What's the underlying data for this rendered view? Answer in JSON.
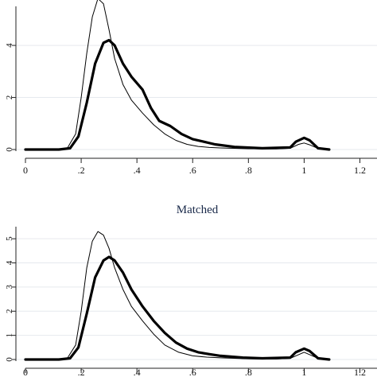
{
  "chart_data": [
    {
      "type": "line",
      "title": "",
      "xlim": [
        0,
        1.25
      ],
      "ylim": [
        0,
        5.5
      ],
      "xticks": [
        0,
        0.2,
        0.4,
        0.6,
        0.8,
        1,
        1.2
      ],
      "xtick_labels": [
        "0",
        ".2",
        ".4",
        ".6",
        ".8",
        "1",
        "1.2"
      ],
      "yticks": [
        0,
        2,
        4
      ],
      "ytick_labels": [
        "0",
        "2",
        "4"
      ],
      "grid": true,
      "series": [
        {
          "style": "thin",
          "x": [
            0.0,
            0.1,
            0.15,
            0.18,
            0.2,
            0.22,
            0.24,
            0.26,
            0.28,
            0.3,
            0.32,
            0.35,
            0.38,
            0.42,
            0.46,
            0.5,
            0.54,
            0.58,
            0.62,
            0.66,
            0.7,
            0.8,
            0.9,
            0.95,
            0.98,
            1.0,
            1.02,
            1.05,
            1.09
          ],
          "y": [
            0.0,
            0.0,
            0.05,
            0.6,
            2.0,
            3.7,
            5.1,
            5.8,
            5.6,
            4.6,
            3.5,
            2.5,
            1.9,
            1.4,
            0.95,
            0.6,
            0.35,
            0.2,
            0.12,
            0.08,
            0.06,
            0.03,
            0.02,
            0.05,
            0.2,
            0.25,
            0.18,
            0.04,
            0.0
          ]
        },
        {
          "style": "thick",
          "x": [
            0.0,
            0.12,
            0.16,
            0.19,
            0.22,
            0.25,
            0.28,
            0.3,
            0.32,
            0.35,
            0.38,
            0.42,
            0.45,
            0.48,
            0.52,
            0.56,
            0.6,
            0.64,
            0.68,
            0.75,
            0.85,
            0.95,
            0.97,
            1.0,
            1.02,
            1.05,
            1.09
          ],
          "y": [
            0.0,
            0.0,
            0.05,
            0.5,
            1.8,
            3.3,
            4.1,
            4.2,
            4.0,
            3.3,
            2.8,
            2.3,
            1.6,
            1.1,
            0.9,
            0.6,
            0.4,
            0.3,
            0.2,
            0.1,
            0.05,
            0.08,
            0.3,
            0.45,
            0.35,
            0.05,
            0.0
          ]
        }
      ]
    },
    {
      "type": "line",
      "title": "Matched",
      "xlim": [
        0,
        1.25
      ],
      "ylim": [
        0,
        5.5
      ],
      "xticks": [
        0,
        0.2,
        0.4,
        0.6,
        0.8,
        1,
        1.2
      ],
      "xtick_labels": [
        "0",
        ".2",
        ".4",
        ".6",
        ".8",
        "1",
        "1.2"
      ],
      "yticks": [
        0,
        1,
        2,
        3,
        4,
        5
      ],
      "ytick_labels": [
        "0",
        "1",
        "2",
        "3",
        "4",
        "5"
      ],
      "grid": true,
      "series": [
        {
          "style": "thin",
          "x": [
            0.0,
            0.1,
            0.15,
            0.18,
            0.2,
            0.22,
            0.24,
            0.26,
            0.28,
            0.3,
            0.32,
            0.35,
            0.38,
            0.42,
            0.46,
            0.5,
            0.55,
            0.6,
            0.65,
            0.7,
            0.8,
            0.9,
            0.95,
            0.98,
            1.0,
            1.02,
            1.05,
            1.09
          ],
          "y": [
            0.0,
            0.0,
            0.05,
            0.6,
            2.0,
            3.8,
            4.9,
            5.3,
            5.15,
            4.6,
            3.8,
            2.9,
            2.2,
            1.6,
            1.05,
            0.6,
            0.3,
            0.15,
            0.1,
            0.07,
            0.03,
            0.02,
            0.05,
            0.2,
            0.3,
            0.2,
            0.05,
            0.0
          ]
        },
        {
          "style": "thick",
          "x": [
            0.0,
            0.12,
            0.16,
            0.19,
            0.22,
            0.25,
            0.28,
            0.3,
            0.32,
            0.35,
            0.38,
            0.42,
            0.46,
            0.5,
            0.54,
            0.58,
            0.62,
            0.66,
            0.7,
            0.78,
            0.85,
            0.95,
            0.97,
            1.0,
            1.02,
            1.05,
            1.09
          ],
          "y": [
            0.0,
            0.0,
            0.05,
            0.5,
            1.9,
            3.4,
            4.1,
            4.25,
            4.1,
            3.6,
            2.9,
            2.2,
            1.6,
            1.1,
            0.7,
            0.45,
            0.3,
            0.22,
            0.15,
            0.08,
            0.05,
            0.08,
            0.3,
            0.45,
            0.35,
            0.05,
            0.0
          ]
        }
      ]
    }
  ]
}
